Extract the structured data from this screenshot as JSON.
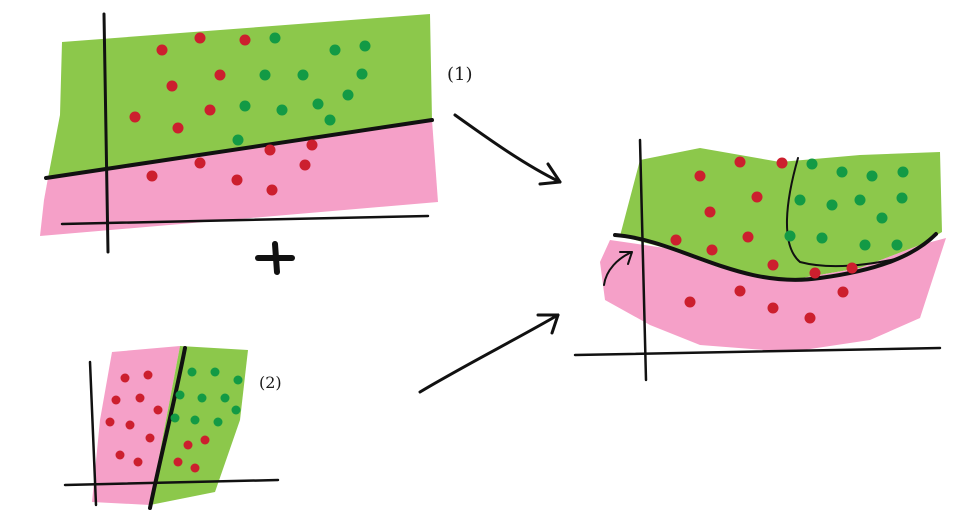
{
  "labels": {
    "panel1": "(1)",
    "panel2": "(2)",
    "plus": "+"
  },
  "colors": {
    "green_region": "#8cc84b",
    "pink_region": "#f5a0c8",
    "red_dot": "#cc1f2e",
    "green_dot": "#139a45",
    "ink": "#111111"
  }
}
